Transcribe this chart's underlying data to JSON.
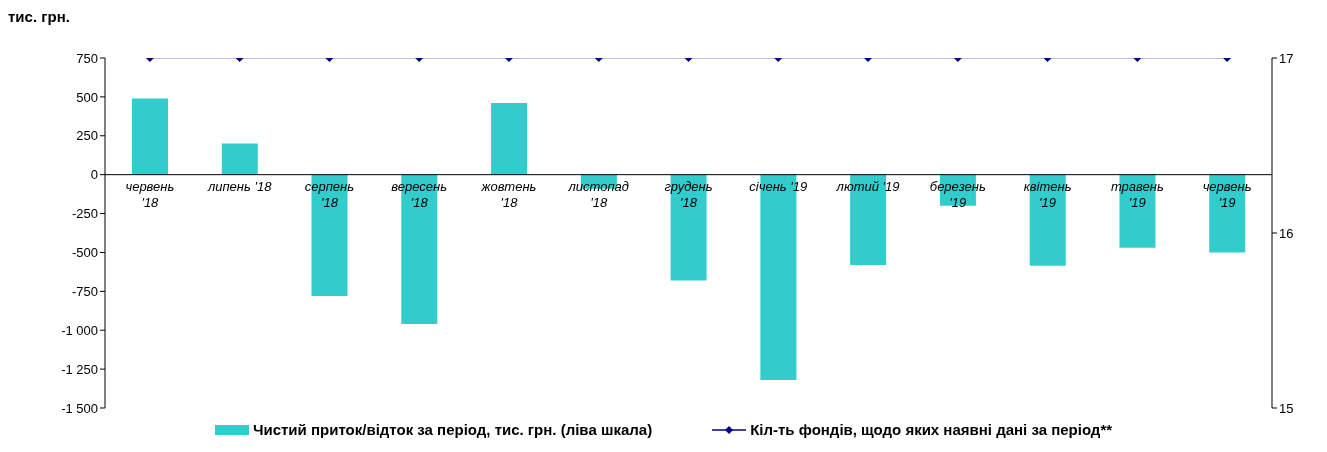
{
  "chart_data": {
    "type": "bar",
    "ylabel": "тис. грн.",
    "categories": [
      "червень '18",
      "липень '18",
      "серпень '18",
      "вересень '18",
      "жовтень '18",
      "листопад '18",
      "грудень '18",
      "січень '19",
      "лютий '19",
      "березень '19",
      "квітень '19",
      "травень '19",
      "червень '19"
    ],
    "series": [
      {
        "name": "Чистий приток/відток за період, тис. грн. (ліва шкала)",
        "color": "#33cccc",
        "values": [
          490,
          200,
          -780,
          -960,
          460,
          -90,
          -680,
          -1320,
          -580,
          -200,
          -585,
          -470,
          -500
        ]
      },
      {
        "name": "Кіл-ть фондів, щодо яких наявні дані за період**",
        "type": "line",
        "axis": "y2",
        "color": "#000080",
        "marker": "diamond",
        "values": [
          17,
          17,
          17,
          17,
          17,
          17,
          17,
          17,
          17,
          17,
          17,
          17,
          17
        ]
      }
    ],
    "ylim": [
      -1500,
      750
    ],
    "yticks": [
      750,
      500,
      250,
      0,
      -250,
      -500,
      -750,
      {
        "value": -1000,
        "label": "-1 000"
      },
      {
        "value": -1250,
        "label": "-1 250"
      },
      {
        "value": -1500,
        "label": "-1 500"
      }
    ],
    "y2lim": [
      15,
      17
    ],
    "y2ticks": [
      15,
      16,
      17
    ],
    "grid": false,
    "legend": "bottom"
  }
}
